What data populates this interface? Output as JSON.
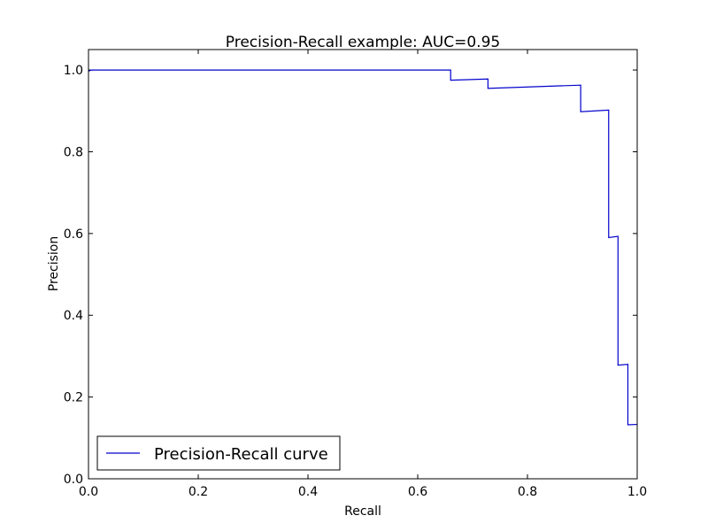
{
  "chart_data": {
    "type": "line",
    "title": "Precision-Recall example: AUC=0.95",
    "xlabel": "Recall",
    "ylabel": "Precision",
    "xlim": [
      0.0,
      1.0
    ],
    "ylim": [
      0.0,
      1.05
    ],
    "x_ticks": [
      "0.0",
      "0.2",
      "0.4",
      "0.6",
      "0.8",
      "1.0"
    ],
    "y_ticks": [
      "0.0",
      "0.2",
      "0.4",
      "0.6",
      "0.8",
      "1.0"
    ],
    "grid": false,
    "legend_position": "lower-left",
    "series": [
      {
        "name": "Precision-Recall curve",
        "color": "#0000cc",
        "x": [
          0.0,
          0.005,
          0.66,
          0.66,
          0.728,
          0.728,
          0.897,
          0.897,
          0.948,
          0.948,
          0.965,
          0.965,
          0.983,
          0.983,
          1.0
        ],
        "y": [
          0.997,
          1.0,
          1.0,
          0.975,
          0.978,
          0.955,
          0.963,
          0.898,
          0.902,
          0.59,
          0.593,
          0.278,
          0.28,
          0.132,
          0.133
        ]
      }
    ]
  }
}
